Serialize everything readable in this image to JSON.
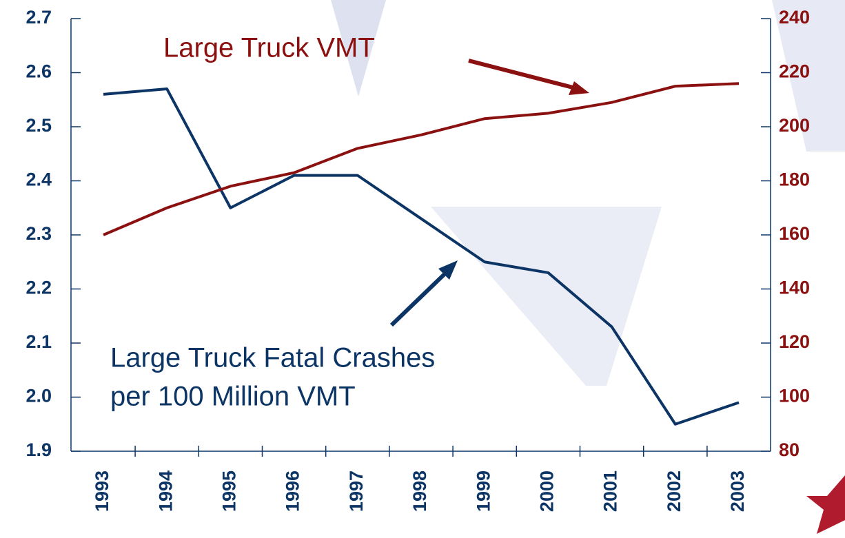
{
  "chart_data": {
    "type": "line",
    "categories": [
      "1993",
      "1994",
      "1995",
      "1996",
      "1997",
      "1998",
      "1999",
      "2000",
      "2001",
      "2002",
      "2003"
    ],
    "series": [
      {
        "color": "#0c3566",
        "values": [
          2.56,
          2.57,
          2.35,
          2.41,
          2.41,
          2.33,
          2.25,
          2.23,
          2.13,
          1.95,
          1.99
        ]
      },
      {
        "color": "#8b1010",
        "axis": "y2",
        "values": [
          160,
          170,
          178,
          183,
          192,
          197,
          203,
          205,
          209,
          215,
          216
        ]
      }
    ],
    "ylim": [
      1.9,
      2.7
    ],
    "yticks": [
      1.9,
      {
        "value": 2,
        "label": "2.0"
      },
      2.1,
      2.2,
      2.3,
      2.4,
      2.5,
      2.6,
      2.7
    ],
    "y2lim": [
      80,
      240
    ],
    "y2ticks": [
      80,
      100,
      120,
      140,
      160,
      180,
      200,
      220,
      240
    ],
    "y2color": "#8b1010",
    "annotations": [
      {
        "lines": [
          "Large Truck VMT"
        ],
        "color": "#8b1010"
      },
      {
        "lines": [
          "Large Truck Fatal Crashes",
          "per 100 Million VMT"
        ],
        "color": "#0c3566"
      }
    ]
  }
}
